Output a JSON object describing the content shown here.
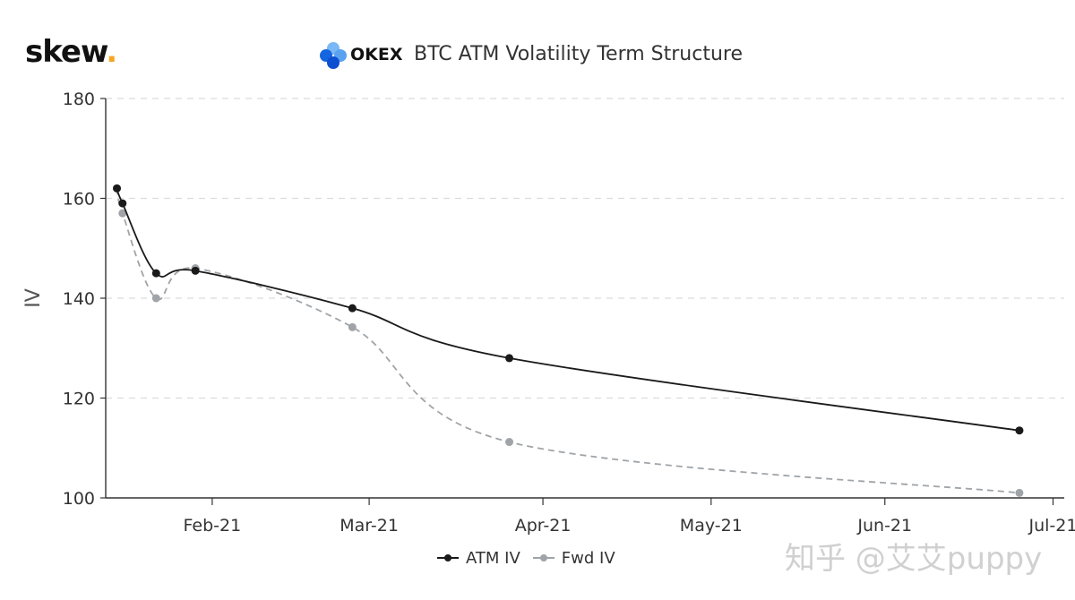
{
  "brand": {
    "name": "skew",
    "dot": "."
  },
  "header": {
    "exchange": "OKEX",
    "title": "BTC ATM Volatility Term Structure"
  },
  "watermark": "知乎 @艾艾puppy",
  "colors": {
    "atm": "#1a1a1a",
    "fwd": "#a0a4a8",
    "grid": "#dcdcdc",
    "axis": "#333333",
    "brand_dot": "#f5a623"
  },
  "chart_data": {
    "type": "line",
    "title": "BTC ATM Volatility Term Structure",
    "ylabel": "IV",
    "xlabel": "",
    "ylim": [
      100,
      180
    ],
    "yticks": [
      100,
      120,
      140,
      160,
      180
    ],
    "xlim": [
      "2021-01-13",
      "2021-07-03"
    ],
    "xticks": [
      {
        "date": "2021-02-01",
        "label": "Feb-21"
      },
      {
        "date": "2021-03-01",
        "label": "Mar-21"
      },
      {
        "date": "2021-04-01",
        "label": "Apr-21"
      },
      {
        "date": "2021-05-01",
        "label": "May-21"
      },
      {
        "date": "2021-06-01",
        "label": "Jun-21"
      },
      {
        "date": "2021-07-01",
        "label": "Jul-21"
      }
    ],
    "grid": true,
    "legend_position": "bottom",
    "series": [
      {
        "name": "ATM IV",
        "style": "solid",
        "points": [
          {
            "x": "2021-01-15",
            "y": 162
          },
          {
            "x": "2021-01-16",
            "y": 159
          },
          {
            "x": "2021-01-22",
            "y": 145
          },
          {
            "x": "2021-01-29",
            "y": 145.5
          },
          {
            "x": "2021-02-26",
            "y": 138
          },
          {
            "x": "2021-03-26",
            "y": 128
          },
          {
            "x": "2021-06-25",
            "y": 113.5
          }
        ]
      },
      {
        "name": "Fwd IV",
        "style": "dashed",
        "points": [
          {
            "x": "2021-01-15",
            "y": 162
          },
          {
            "x": "2021-01-16",
            "y": 157
          },
          {
            "x": "2021-01-22",
            "y": 140
          },
          {
            "x": "2021-01-29",
            "y": 146
          },
          {
            "x": "2021-02-26",
            "y": 134.2
          },
          {
            "x": "2021-03-26",
            "y": 111.2
          },
          {
            "x": "2021-06-25",
            "y": 101
          }
        ]
      }
    ]
  }
}
